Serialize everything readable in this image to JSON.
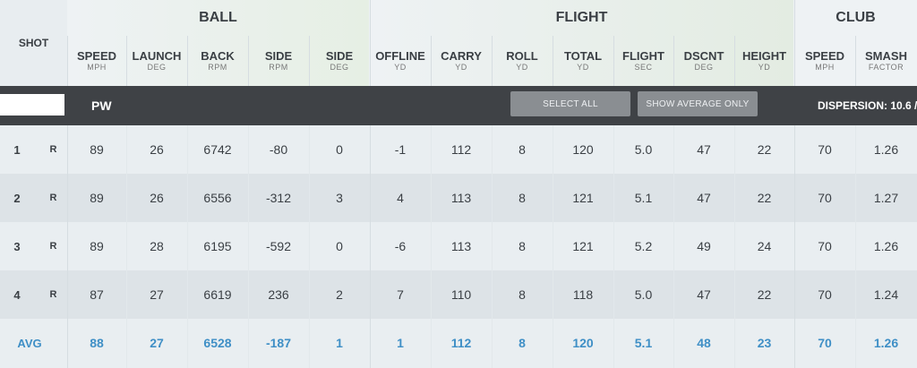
{
  "groups": {
    "ball": "BALL",
    "flight": "FLIGHT",
    "club": "CLUB"
  },
  "shot_header": "SHOT",
  "columns": [
    {
      "title": "SPEED",
      "unit": "MPH"
    },
    {
      "title": "LAUNCH",
      "unit": "DEG"
    },
    {
      "title": "BACK",
      "unit": "RPM"
    },
    {
      "title": "SIDE",
      "unit": "RPM"
    },
    {
      "title": "SIDE",
      "unit": "DEG"
    },
    {
      "title": "OFFLINE",
      "unit": "YD"
    },
    {
      "title": "CARRY",
      "unit": "YD"
    },
    {
      "title": "ROLL",
      "unit": "YD"
    },
    {
      "title": "TOTAL",
      "unit": "YD"
    },
    {
      "title": "FLIGHT",
      "unit": "SEC"
    },
    {
      "title": "DSCNT",
      "unit": "DEG"
    },
    {
      "title": "HEIGHT",
      "unit": "YD"
    },
    {
      "title": "SPEED",
      "unit": "MPH"
    },
    {
      "title": "SMASH",
      "unit": "FACTOR"
    }
  ],
  "toolbar": {
    "club": "PW",
    "select_all": "SELECT ALL",
    "show_average": "SHOW AVERAGE ONLY",
    "dispersion": "DISPERSION: 10.6 /"
  },
  "rows": [
    {
      "shot": "1",
      "hand": "R",
      "values": [
        "89",
        "26",
        "6742",
        "-80",
        "0",
        "-1",
        "112",
        "8",
        "120",
        "5.0",
        "47",
        "22",
        "70",
        "1.26"
      ]
    },
    {
      "shot": "2",
      "hand": "R",
      "values": [
        "89",
        "26",
        "6556",
        "-312",
        "3",
        "4",
        "113",
        "8",
        "121",
        "5.1",
        "47",
        "22",
        "70",
        "1.27"
      ]
    },
    {
      "shot": "3",
      "hand": "R",
      "values": [
        "89",
        "28",
        "6195",
        "-592",
        "0",
        "-6",
        "113",
        "8",
        "121",
        "5.2",
        "49",
        "24",
        "70",
        "1.26"
      ]
    },
    {
      "shot": "4",
      "hand": "R",
      "values": [
        "87",
        "27",
        "6619",
        "236",
        "2",
        "7",
        "110",
        "8",
        "118",
        "5.0",
        "47",
        "22",
        "70",
        "1.24"
      ]
    }
  ],
  "average": {
    "label": "AVG",
    "values": [
      "88",
      "27",
      "6528",
      "-187",
      "1",
      "1",
      "112",
      "8",
      "120",
      "5.1",
      "48",
      "23",
      "70",
      "1.26"
    ]
  },
  "colors": {
    "accent": "#3f8fc6",
    "bar": "#3f4246",
    "button": "#8a8e92"
  }
}
